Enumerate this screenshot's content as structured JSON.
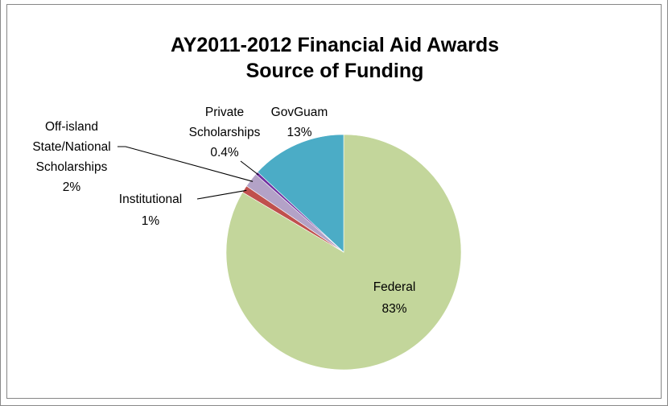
{
  "chart_data": {
    "type": "pie",
    "title": [
      "AY2011-2012 Financial Aid Awards",
      "Source of Funding"
    ],
    "slices": [
      {
        "name": "Federal",
        "value": 83,
        "label": "83%",
        "color": "#C3D69B"
      },
      {
        "name": "Institutional",
        "value": 1,
        "label": "1%",
        "color": "#C0504D"
      },
      {
        "name": "Off-island State/National Scholarships",
        "value": 2,
        "label": "2%",
        "color": "#B3A2C7"
      },
      {
        "name": "Private Scholarships",
        "value": 0.4,
        "label": "0.4%",
        "color": "#7030A0"
      },
      {
        "name": "GovGuam",
        "value": 13,
        "label": "13%",
        "color": "#4BACC6"
      }
    ],
    "legend": "none"
  }
}
